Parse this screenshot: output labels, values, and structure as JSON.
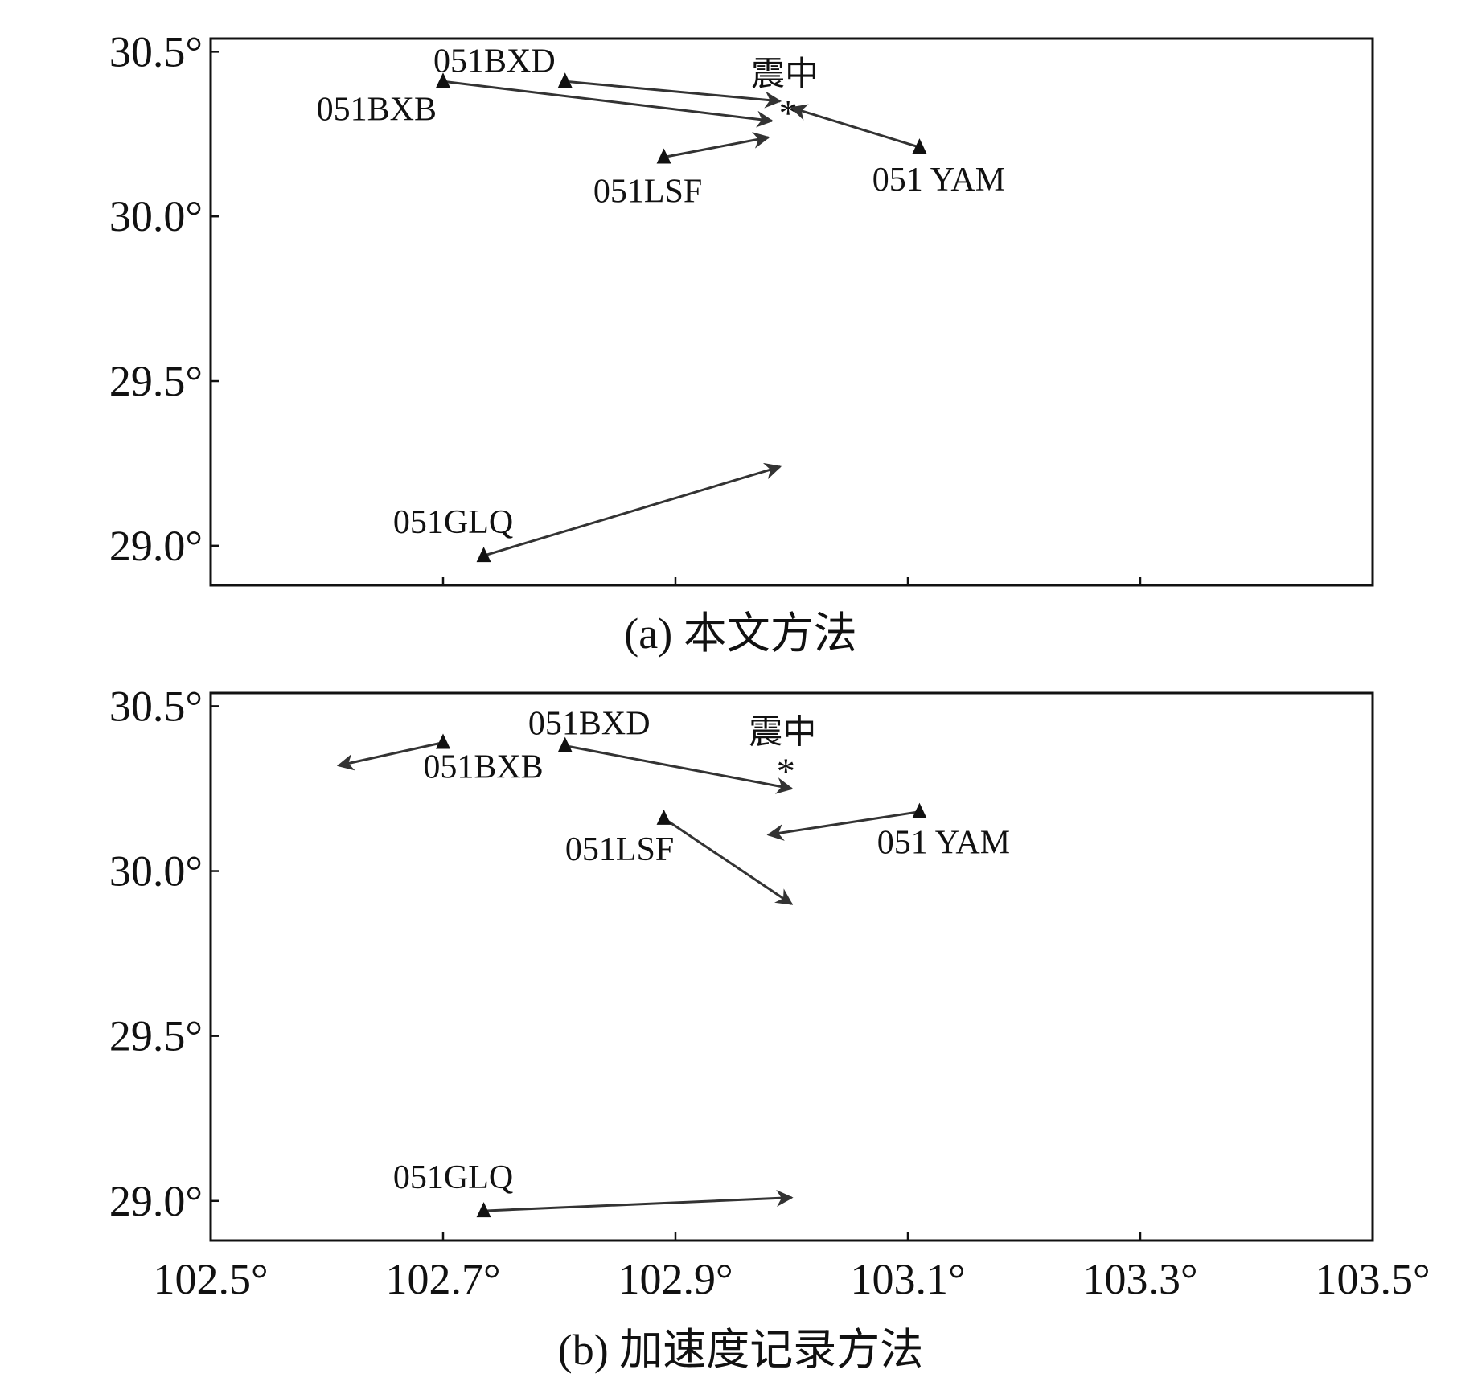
{
  "chart_data": [
    {
      "type": "scatter",
      "caption": "(a) 本文方法",
      "xlim": [
        102.5,
        103.5
      ],
      "ylim": [
        28.88,
        30.54
      ],
      "yticks": [
        30.5,
        30.0,
        29.5,
        29.0
      ],
      "ytick_labels": [
        "30.5°",
        "30.0°",
        "29.5°",
        "29.0°"
      ],
      "xticks": [
        102.5,
        102.7,
        102.9,
        103.1,
        103.3,
        103.5
      ],
      "xtick_labels": [],
      "grid": false,
      "epicenter": {
        "label": "震中",
        "marker": "*",
        "lon": 102.997,
        "lat": 30.33
      },
      "stations": [
        {
          "name": "051BXB",
          "lon": 102.7,
          "lat": 30.41,
          "arrow_to": [
            102.983,
            30.29
          ]
        },
        {
          "name": "051BXD",
          "lon": 102.805,
          "lat": 30.41,
          "arrow_to": [
            102.99,
            30.35
          ]
        },
        {
          "name": "051LSF",
          "lon": 102.89,
          "lat": 30.18,
          "arrow_to": [
            102.98,
            30.24
          ]
        },
        {
          "name": "051 YAM",
          "lon": 103.11,
          "lat": 30.21,
          "arrow_to": [
            103.0,
            30.33
          ]
        },
        {
          "name": "051GLQ",
          "lon": 102.735,
          "lat": 28.97,
          "arrow_to": [
            102.99,
            29.24
          ]
        }
      ]
    },
    {
      "type": "scatter",
      "caption": "(b) 加速度记录方法",
      "xlim": [
        102.5,
        103.5
      ],
      "ylim": [
        28.88,
        30.54
      ],
      "yticks": [
        30.5,
        30.0,
        29.5,
        29.0
      ],
      "ytick_labels": [
        "30.5°",
        "30.0°",
        "29.5°",
        "29.0°"
      ],
      "xticks": [
        102.5,
        102.7,
        102.9,
        103.1,
        103.3,
        103.5
      ],
      "xtick_labels": [
        "102.5°",
        "102.7°",
        "102.9°",
        "103.1°",
        "103.3°",
        "103.5°"
      ],
      "grid": false,
      "epicenter": {
        "label": "震中",
        "marker": "*",
        "lon": 102.995,
        "lat": 30.32
      },
      "stations": [
        {
          "name": "051BXB",
          "lon": 102.7,
          "lat": 30.39,
          "arrow_to": [
            102.61,
            30.32
          ]
        },
        {
          "name": "051BXD",
          "lon": 102.805,
          "lat": 30.38,
          "arrow_to": [
            103.0,
            30.25
          ]
        },
        {
          "name": "051LSF",
          "lon": 102.89,
          "lat": 30.16,
          "arrow_to": [
            103.0,
            29.9
          ]
        },
        {
          "name": "051 YAM",
          "lon": 103.11,
          "lat": 30.18,
          "arrow_to": [
            102.98,
            30.11
          ]
        },
        {
          "name": "051GLQ",
          "lon": 102.735,
          "lat": 28.97,
          "arrow_to": [
            103.0,
            29.01
          ]
        }
      ]
    }
  ]
}
